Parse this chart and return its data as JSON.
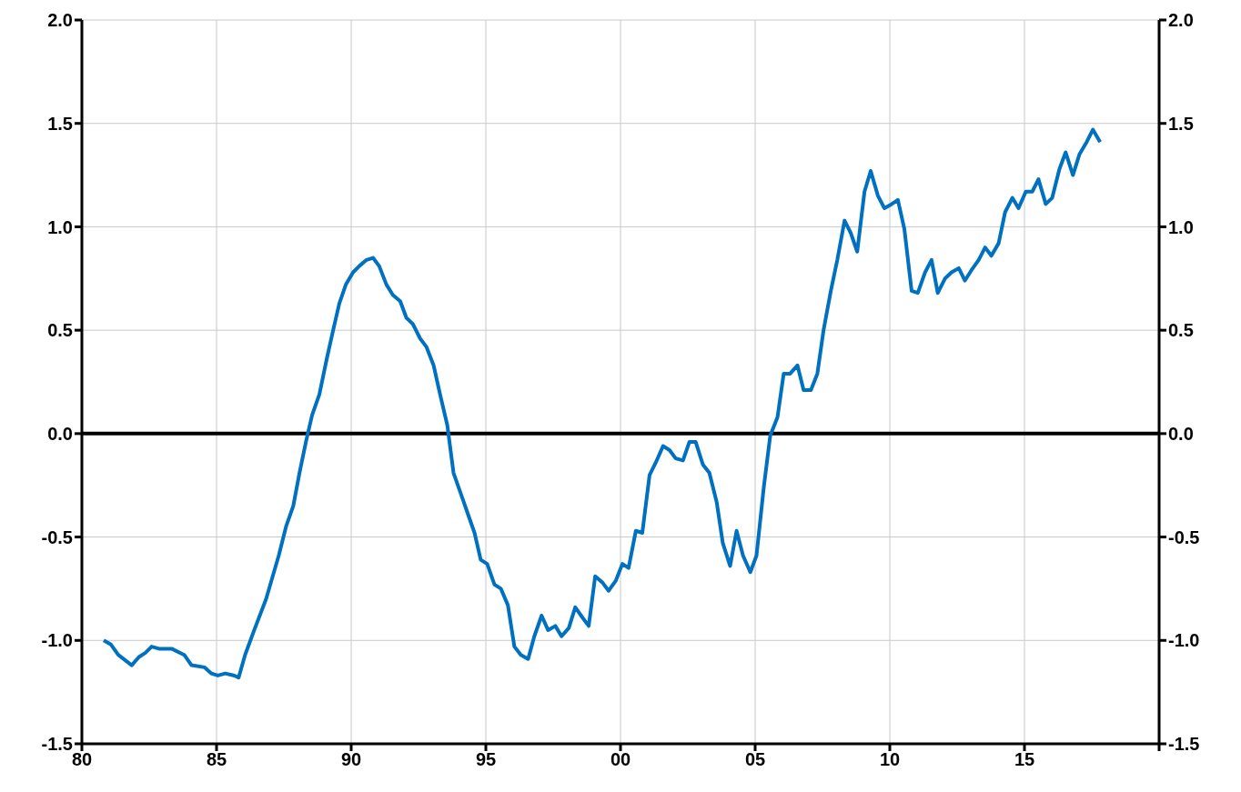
{
  "chart_data": {
    "type": "line",
    "x": [
      1980.81,
      1981.08,
      1981.35,
      1981.85,
      1982.12,
      1982.36,
      1982.59,
      1982.86,
      1983.33,
      1983.8,
      1984.07,
      1984.55,
      1984.81,
      1985.05,
      1985.32,
      1985.66,
      1985.82,
      1986.06,
      1986.4,
      1986.84,
      1987.31,
      1987.58,
      1987.85,
      1988.08,
      1988.32,
      1988.55,
      1988.82,
      1989.09,
      1989.33,
      1989.56,
      1989.8,
      1990.07,
      1990.3,
      1990.57,
      1990.81,
      1991.04,
      1991.31,
      1991.55,
      1991.82,
      1992.05,
      1992.29,
      1992.56,
      1992.79,
      1993.06,
      1993.3,
      1993.57,
      1993.8,
      1994.07,
      1994.31,
      1994.58,
      1994.81,
      1995.05,
      1995.32,
      1995.56,
      1995.82,
      1996.06,
      1996.3,
      1996.57,
      1996.8,
      1997.07,
      1997.31,
      1997.58,
      1997.81,
      1998.08,
      1998.32,
      1998.59,
      1998.82,
      1999.06,
      1999.33,
      1999.56,
      1999.83,
      2000.07,
      2000.3,
      2000.57,
      2000.81,
      2001.08,
      2001.31,
      2001.58,
      2001.82,
      2002.05,
      2002.32,
      2002.56,
      2002.79,
      2003.06,
      2003.3,
      2003.57,
      2003.8,
      2004.07,
      2004.31,
      2004.55,
      2004.82,
      2005.05,
      2005.32,
      2005.56,
      2005.83,
      2006.06,
      2006.3,
      2006.57,
      2006.8,
      2007.07,
      2007.31,
      2007.54,
      2007.81,
      2008.05,
      2008.32,
      2008.55,
      2008.79,
      2009.06,
      2009.29,
      2009.56,
      2009.8,
      2010.07,
      2010.3,
      2010.54,
      2010.81,
      2011.04,
      2011.31,
      2011.55,
      2011.78,
      2012.05,
      2012.29,
      2012.56,
      2012.79,
      2013.03,
      2013.3,
      2013.54,
      2013.77,
      2014.04,
      2014.28,
      2014.55,
      2014.78,
      2015.05,
      2015.29,
      2015.52,
      2015.79,
      2016.03,
      2016.3,
      2016.53,
      2016.8,
      2017.04,
      2017.31,
      2017.54,
      2017.81
    ],
    "series": [
      {
        "color": "#0070c0",
        "values": [
          -1.0,
          -1.02,
          -1.07,
          -1.12,
          -1.08,
          -1.06,
          -1.03,
          -1.04,
          -1.04,
          -1.07,
          -1.12,
          -1.13,
          -1.16,
          -1.17,
          -1.16,
          -1.17,
          -1.18,
          -1.07,
          -0.95,
          -0.8,
          -0.59,
          -0.45,
          -0.35,
          -0.19,
          -0.04,
          0.09,
          0.19,
          0.36,
          0.5,
          0.63,
          0.72,
          0.78,
          0.81,
          0.84,
          0.85,
          0.81,
          0.72,
          0.67,
          0.64,
          0.56,
          0.53,
          0.46,
          0.42,
          0.33,
          0.19,
          0.04,
          -0.19,
          -0.29,
          -0.38,
          -0.48,
          -0.61,
          -0.63,
          -0.73,
          -0.75,
          -0.83,
          -1.03,
          -1.07,
          -1.09,
          -0.98,
          -0.88,
          -0.95,
          -0.93,
          -0.98,
          -0.94,
          -0.84,
          -0.89,
          -0.93,
          -0.69,
          -0.72,
          -0.76,
          -0.71,
          -0.63,
          -0.65,
          -0.47,
          -0.48,
          -0.2,
          -0.14,
          -0.06,
          -0.08,
          -0.12,
          -0.13,
          -0.04,
          -0.04,
          -0.15,
          -0.19,
          -0.33,
          -0.53,
          -0.64,
          -0.47,
          -0.59,
          -0.67,
          -0.59,
          -0.26,
          -0.01,
          0.08,
          0.29,
          0.29,
          0.33,
          0.21,
          0.21,
          0.29,
          0.5,
          0.69,
          0.84,
          1.03,
          0.97,
          0.88,
          1.17,
          1.27,
          1.15,
          1.09,
          1.11,
          1.13,
          0.99,
          0.69,
          0.68,
          0.78,
          0.84,
          0.68,
          0.75,
          0.78,
          0.8,
          0.74,
          0.79,
          0.84,
          0.9,
          0.86,
          0.92,
          1.07,
          1.14,
          1.09,
          1.17,
          1.17,
          1.23,
          1.11,
          1.14,
          1.28,
          1.36,
          1.25,
          1.35,
          1.41,
          1.47,
          1.41
        ]
      }
    ],
    "xlim": [
      1980,
      2020
    ],
    "xticks": [
      {
        "value": 1980,
        "label": "80"
      },
      {
        "value": 1985,
        "label": "85"
      },
      {
        "value": 1990,
        "label": "90"
      },
      {
        "value": 1995,
        "label": "95"
      },
      {
        "value": 2000,
        "label": "00"
      },
      {
        "value": 2005,
        "label": "05"
      },
      {
        "value": 2010,
        "label": "10"
      },
      {
        "value": 2015,
        "label": "15"
      },
      {
        "value": 2020,
        "label": null
      }
    ],
    "ylim": [
      -1.5,
      2.0
    ],
    "yticks": [
      {
        "value": -1.5,
        "label": "-1.5"
      },
      {
        "value": -1.0,
        "label": "-1.0"
      },
      {
        "value": -0.5,
        "label": "-0.5"
      },
      {
        "value": 0,
        "label": "0.0"
      },
      {
        "value": 0.5,
        "label": "0.5"
      },
      {
        "value": 1.0,
        "label": "1.0"
      },
      {
        "value": 1.5,
        "label": "1.5"
      },
      {
        "value": 2.0,
        "label": "2.0"
      }
    ],
    "y2lim": [
      -1.5,
      2.0
    ],
    "y2ticks": [
      {
        "value": -1.5,
        "label": "-1.5"
      },
      {
        "value": -1.0,
        "label": "-1.0"
      },
      {
        "value": -0.5,
        "label": "-0.5"
      },
      {
        "value": 0,
        "label": "0.0"
      },
      {
        "value": 0.5,
        "label": "0.5"
      },
      {
        "value": 1.0,
        "label": "1.0"
      },
      {
        "value": 1.5,
        "label": "1.5"
      },
      {
        "value": 2.0,
        "label": "2.0"
      }
    ],
    "ref_lines": [
      {
        "axis": "y",
        "value": 0,
        "color": "#000000"
      }
    ],
    "grid": true,
    "marker": "none",
    "line_style": "solid"
  }
}
